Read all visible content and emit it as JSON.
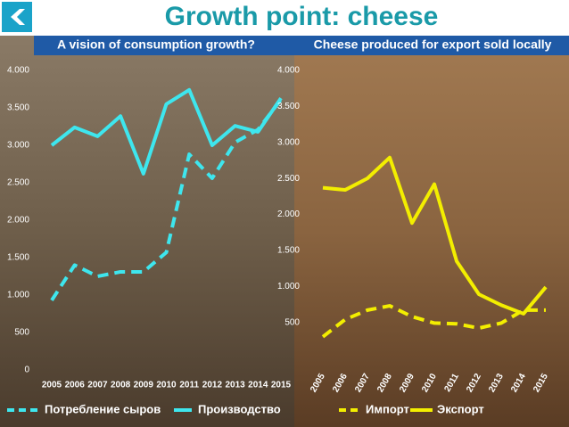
{
  "header": {
    "title": "Growth point: cheese"
  },
  "chart_data": [
    {
      "type": "line",
      "title": "A vision of consumption growth?",
      "categories": [
        "2005",
        "2006",
        "2007",
        "2008",
        "2009",
        "2010",
        "2011",
        "2012",
        "2013",
        "2014",
        "2015"
      ],
      "series": [
        {
          "name": "Потребление сыров",
          "color": "#3ee6ee",
          "style": "dashed",
          "values": [
            930,
            1400,
            1250,
            1310,
            1310,
            1570,
            2880,
            2560,
            3040,
            3210,
            3610
          ]
        },
        {
          "name": "Производство",
          "color": "#3ee6ee",
          "style": "solid",
          "values": [
            3000,
            3240,
            3120,
            3390,
            2620,
            3550,
            3740,
            3000,
            3260,
            3180,
            3630
          ]
        }
      ],
      "ylim": [
        0,
        4000
      ],
      "yticks": [
        0,
        500,
        {
          "value": 1000,
          "label": "1.000"
        },
        {
          "value": 1500,
          "label": "1.500"
        },
        {
          "value": 2000,
          "label": "2.000"
        },
        {
          "value": 2500,
          "label": "2.500"
        },
        {
          "value": 3000,
          "label": "3.000"
        },
        {
          "value": 3500,
          "label": "3.500"
        },
        {
          "value": 4000,
          "label": "4.000"
        }
      ],
      "grid": false
    },
    {
      "type": "line",
      "title": "Cheese produced for export sold locally",
      "categories": [
        "2005",
        "2006",
        "2007",
        "2008",
        "2009",
        "2010",
        "2011",
        "2012",
        "2013",
        "2014",
        "2015"
      ],
      "series": [
        {
          "name": "Импорт",
          "color": "#f3ee00",
          "style": "dashed",
          "values": [
            300,
            540,
            670,
            730,
            580,
            490,
            480,
            420,
            490,
            670,
            670
          ]
        },
        {
          "name": "Экспорт",
          "color": "#f3ee00",
          "style": "solid",
          "values": [
            2370,
            2340,
            2500,
            2790,
            1880,
            2420,
            1350,
            890,
            740,
            620,
            990
          ]
        }
      ],
      "ylim": [
        0,
        4000
      ],
      "yticks": [
        500,
        {
          "value": 1000,
          "label": "1.000"
        },
        {
          "value": 1500,
          "label": "1.500"
        },
        {
          "value": 2000,
          "label": "2.000"
        },
        {
          "value": 2500,
          "label": "2.500"
        },
        {
          "value": 3000,
          "label": "3.000"
        },
        {
          "value": 3500,
          "label": "3.500"
        },
        {
          "value": 4000,
          "label": "4.000"
        }
      ],
      "grid": false
    }
  ]
}
